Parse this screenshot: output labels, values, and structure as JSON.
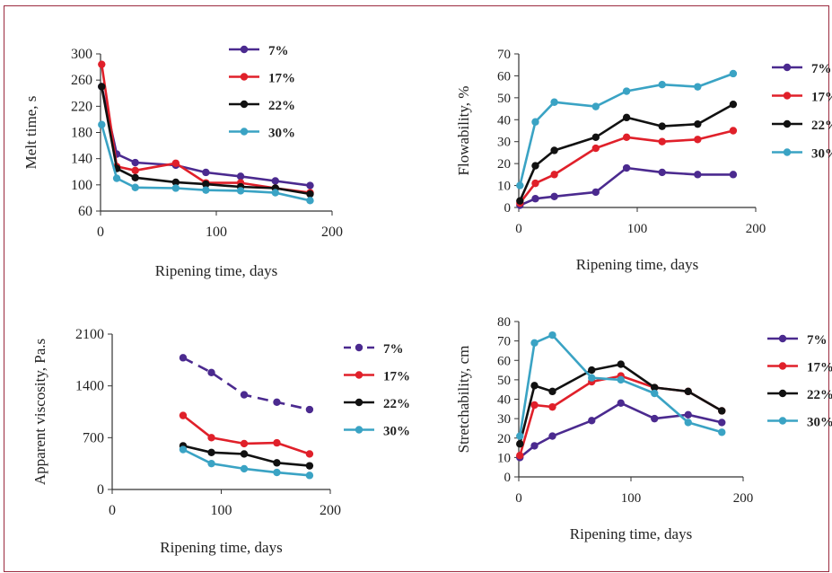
{
  "chart_data": [
    {
      "type": "line",
      "xlabel": "Ripening time, days",
      "ylabel": "Melt time, s",
      "xlim": [
        0,
        200
      ],
      "ylim": [
        60,
        300
      ],
      "xticks": [
        0,
        100,
        200
      ],
      "yticks": [
        60,
        100,
        140,
        180,
        220,
        260,
        300
      ],
      "legend_position": "right",
      "series": [
        {
          "name": "7%",
          "color": "#4b2a8f",
          "dashed": false,
          "x": [
            1,
            14,
            30,
            65,
            91,
            121,
            151,
            181
          ],
          "y": [
            250,
            147,
            134,
            130,
            119,
            113,
            106,
            99
          ]
        },
        {
          "name": "17%",
          "color": "#e0202a",
          "dashed": false,
          "x": [
            1,
            14,
            30,
            65,
            91,
            121,
            151,
            181
          ],
          "y": [
            284,
            128,
            122,
            133,
            103,
            103,
            95,
            88
          ]
        },
        {
          "name": "22%",
          "color": "#111111",
          "dashed": false,
          "x": [
            1,
            14,
            30,
            65,
            91,
            121,
            151,
            181
          ],
          "y": [
            250,
            125,
            111,
            104,
            101,
            97,
            95,
            86
          ]
        },
        {
          "name": "30%",
          "color": "#3aa3c4",
          "dashed": false,
          "x": [
            1,
            14,
            30,
            65,
            91,
            121,
            151,
            181
          ],
          "y": [
            192,
            110,
            96,
            95,
            92,
            91,
            88,
            76
          ]
        }
      ]
    },
    {
      "type": "line",
      "xlabel": "Ripening time, days",
      "ylabel": "Flowability, %",
      "xlim": [
        0,
        200
      ],
      "ylim": [
        0,
        70
      ],
      "xticks": [
        0,
        100,
        200
      ],
      "yticks": [
        0,
        10,
        20,
        30,
        40,
        50,
        60,
        70
      ],
      "legend_position": "right",
      "series": [
        {
          "name": "7%",
          "color": "#4b2a8f",
          "dashed": false,
          "x": [
            1,
            14,
            30,
            65,
            91,
            121,
            151,
            181
          ],
          "y": [
            1,
            4,
            5,
            7,
            18,
            16,
            15,
            15
          ]
        },
        {
          "name": "17%",
          "color": "#e0202a",
          "dashed": false,
          "x": [
            1,
            14,
            30,
            65,
            91,
            121,
            151,
            181
          ],
          "y": [
            2,
            11,
            15,
            27,
            32,
            30,
            31,
            35
          ]
        },
        {
          "name": "22%",
          "color": "#111111",
          "dashed": false,
          "x": [
            1,
            14,
            30,
            65,
            91,
            121,
            151,
            181
          ],
          "y": [
            3,
            19,
            26,
            32,
            41,
            37,
            38,
            47
          ]
        },
        {
          "name": "30%",
          "color": "#3aa3c4",
          "dashed": false,
          "x": [
            1,
            14,
            30,
            65,
            91,
            121,
            151,
            181
          ],
          "y": [
            10,
            39,
            48,
            46,
            53,
            56,
            55,
            61
          ]
        }
      ]
    },
    {
      "type": "line",
      "xlabel": "Ripening time, days",
      "ylabel": "Apparent viscosity, Pa.s",
      "xlim": [
        0,
        200
      ],
      "ylim": [
        0,
        2100
      ],
      "xticks": [
        0,
        100,
        200
      ],
      "yticks": [
        0,
        700,
        1400,
        2100
      ],
      "legend_position": "right",
      "series": [
        {
          "name": "7%",
          "color": "#4b2a8f",
          "dashed": true,
          "x": [
            65,
            91,
            121,
            151,
            181
          ],
          "y": [
            1780,
            1580,
            1280,
            1180,
            1080
          ]
        },
        {
          "name": "17%",
          "color": "#e0202a",
          "dashed": false,
          "x": [
            65,
            91,
            121,
            151,
            181
          ],
          "y": [
            1000,
            700,
            620,
            630,
            480
          ]
        },
        {
          "name": "22%",
          "color": "#111111",
          "dashed": false,
          "x": [
            65,
            91,
            121,
            151,
            181
          ],
          "y": [
            590,
            500,
            480,
            360,
            320
          ]
        },
        {
          "name": "30%",
          "color": "#3aa3c4",
          "dashed": false,
          "x": [
            65,
            91,
            121,
            151,
            181
          ],
          "y": [
            540,
            350,
            280,
            230,
            190
          ]
        }
      ]
    },
    {
      "type": "line",
      "xlabel": "Ripening time, days",
      "ylabel": "Stretchability, cm",
      "xlim": [
        0,
        200
      ],
      "ylim": [
        0,
        80
      ],
      "xticks": [
        0,
        100,
        200
      ],
      "yticks": [
        0,
        10,
        20,
        30,
        40,
        50,
        60,
        70,
        80
      ],
      "legend_position": "right",
      "series": [
        {
          "name": "7%",
          "color": "#4b2a8f",
          "dashed": false,
          "x": [
            1,
            14,
            30,
            65,
            91,
            121,
            151,
            181
          ],
          "y": [
            10,
            16,
            21,
            29,
            38,
            30,
            32,
            28
          ]
        },
        {
          "name": "17%",
          "color": "#e0202a",
          "dashed": false,
          "x": [
            1,
            14,
            30,
            65,
            91,
            121,
            151,
            181
          ],
          "y": [
            11,
            37,
            36,
            49,
            52,
            46,
            44,
            34
          ]
        },
        {
          "name": "22%",
          "color": "#111111",
          "dashed": false,
          "x": [
            1,
            14,
            30,
            65,
            91,
            121,
            151,
            181
          ],
          "y": [
            17,
            47,
            44,
            55,
            58,
            46,
            44,
            34
          ]
        },
        {
          "name": "30%",
          "color": "#3aa3c4",
          "dashed": false,
          "x": [
            1,
            14,
            30,
            65,
            91,
            121,
            151,
            181
          ],
          "y": [
            21,
            69,
            73,
            51,
            50,
            43,
            28,
            23
          ]
        }
      ]
    }
  ]
}
